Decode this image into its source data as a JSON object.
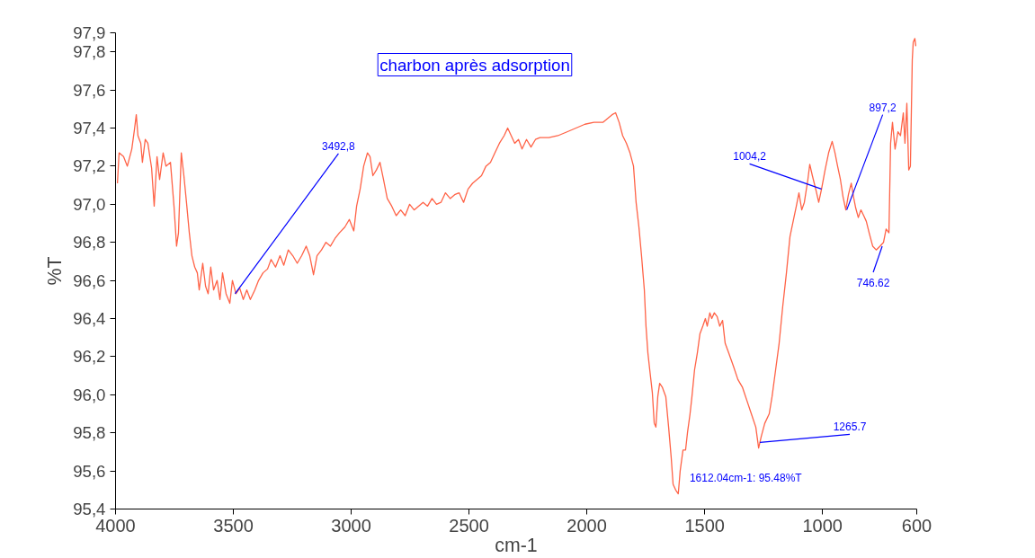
{
  "chart_data": {
    "type": "line",
    "xlabel": "cm-1",
    "ylabel": "%T",
    "xlim": [
      4000,
      600
    ],
    "xticks": [
      4000,
      3500,
      3000,
      2500,
      2000,
      1500,
      1000,
      600
    ],
    "ylim": [
      95.4,
      97.9
    ],
    "yticks": [
      {
        "value": 95.4,
        "label": "95,4"
      },
      {
        "value": 95.6,
        "label": "95,6"
      },
      {
        "value": 95.8,
        "label": "95,8"
      },
      {
        "value": 96.0,
        "label": "96,0"
      },
      {
        "value": 96.2,
        "label": "96,2"
      },
      {
        "value": 96.4,
        "label": "96,4"
      },
      {
        "value": 96.6,
        "label": "96,6"
      },
      {
        "value": 96.8,
        "label": "96,8"
      },
      {
        "value": 97.0,
        "label": "97,0"
      },
      {
        "value": 97.2,
        "label": "97,2"
      },
      {
        "value": 97.4,
        "label": "97,4"
      },
      {
        "value": 97.6,
        "label": "97,6"
      },
      {
        "value": 97.8,
        "label": "97,8"
      },
      {
        "value": 97.9,
        "label": "97,9"
      }
    ],
    "grid": false,
    "marker": "none",
    "line_style": "solid",
    "annotations": [
      "charbon après adsorption",
      {
        "text": "3492,8",
        "x": 3492.8,
        "y": 96.53
      },
      {
        "text": "1004,2",
        "x": 1004.2,
        "y": 97.08
      },
      {
        "text": "897,2",
        "x": 897.2,
        "y": 96.97
      },
      {
        "text": "746.62",
        "x": 746.62,
        "y": 96.78
      },
      {
        "text": "1265.7",
        "x": 1265.7,
        "y": 95.75
      },
      {
        "text": "1612.04cm-1: 95.48%T",
        "x": 1612.04,
        "y": 95.48
      }
    ],
    "series": [
      {
        "color": "#ff6347",
        "x": [
          3992,
          3985,
          3966,
          3950,
          3931,
          3920,
          3912,
          3905,
          3893,
          3886,
          3874,
          3863,
          3847,
          3836,
          3824,
          3813,
          3798,
          3786,
          3767,
          3752,
          3741,
          3733,
          3721,
          3710,
          3699,
          3687,
          3676,
          3664,
          3653,
          3645,
          3630,
          3618,
          3607,
          3596,
          3584,
          3569,
          3557,
          3546,
          3531,
          3515,
          3504,
          3489,
          3473,
          3458,
          3443,
          3428,
          3409,
          3393,
          3374,
          3355,
          3340,
          3321,
          3302,
          3286,
          3267,
          3248,
          3229,
          3210,
          3191,
          3176,
          3160,
          3145,
          3126,
          3107,
          3088,
          3069,
          3050,
          3027,
          3008,
          2989,
          2977,
          2962,
          2947,
          2931,
          2920,
          2908,
          2893,
          2878,
          2863,
          2847,
          2828,
          2809,
          2790,
          2771,
          2752,
          2733,
          2714,
          2695,
          2676,
          2657,
          2638,
          2619,
          2600,
          2580,
          2561,
          2542,
          2523,
          2504,
          2485,
          2466,
          2447,
          2428,
          2409,
          2390,
          2371,
          2351,
          2336,
          2321,
          2306,
          2290,
          2275,
          2256,
          2237,
          2218,
          2199,
          2161,
          2123,
          2084,
          2046,
          2008,
          1970,
          1932,
          1893,
          1878,
          1863,
          1848,
          1832,
          1817,
          1802,
          1791,
          1779,
          1768,
          1756,
          1749,
          1741,
          1733,
          1722,
          1714,
          1707,
          1699,
          1691,
          1680,
          1665,
          1653,
          1642,
          1634,
          1623,
          1612,
          1604,
          1592,
          1581,
          1573,
          1562,
          1554,
          1543,
          1531,
          1520,
          1508,
          1497,
          1489,
          1478,
          1470,
          1459,
          1447,
          1436,
          1424,
          1413,
          1398,
          1378,
          1359,
          1340,
          1321,
          1302,
          1283,
          1271,
          1260,
          1245,
          1226,
          1214,
          1199,
          1184,
          1169,
          1153,
          1138,
          1123,
          1111,
          1100,
          1088,
          1077,
          1062,
          1054,
          1043,
          1027,
          1016,
          1004,
          989,
          974,
          959,
          947,
          936,
          924,
          913,
          901,
          890,
          878,
          867,
          859,
          848,
          837,
          825,
          814,
          802,
          787,
          772,
          756,
          741,
          730,
          718,
          711,
          703,
          692,
          680,
          669,
          657,
          650,
          642,
          634,
          627,
          619,
          615,
          608,
          604
        ],
        "values": [
          97.11,
          97.27,
          97.25,
          97.2,
          97.29,
          97.39,
          97.47,
          97.36,
          97.32,
          97.22,
          97.34,
          97.32,
          97.19,
          96.99,
          97.25,
          97.13,
          97.27,
          97.2,
          97.22,
          96.99,
          96.78,
          96.85,
          97.27,
          97.15,
          97.01,
          96.85,
          96.73,
          96.67,
          96.64,
          96.55,
          96.69,
          96.57,
          96.53,
          96.67,
          96.55,
          96.6,
          96.5,
          96.64,
          96.53,
          96.48,
          96.6,
          96.53,
          96.56,
          96.5,
          96.55,
          96.5,
          96.55,
          96.6,
          96.64,
          96.66,
          96.71,
          96.67,
          96.73,
          96.68,
          96.76,
          96.73,
          96.69,
          96.73,
          96.78,
          96.73,
          96.63,
          96.73,
          96.76,
          96.8,
          96.78,
          96.82,
          96.85,
          96.88,
          96.92,
          96.86,
          96.99,
          97.08,
          97.2,
          97.27,
          97.25,
          97.15,
          97.18,
          97.22,
          97.13,
          97.03,
          96.99,
          96.94,
          96.97,
          96.94,
          97.0,
          96.97,
          96.99,
          97.01,
          96.99,
          97.03,
          97.0,
          97.01,
          97.06,
          97.03,
          97.05,
          97.06,
          97.01,
          97.08,
          97.11,
          97.13,
          97.15,
          97.2,
          97.22,
          97.27,
          97.32,
          97.36,
          97.4,
          97.36,
          97.32,
          97.34,
          97.29,
          97.34,
          97.3,
          97.34,
          97.35,
          97.35,
          97.36,
          97.38,
          97.4,
          97.42,
          97.43,
          97.43,
          97.47,
          97.48,
          97.43,
          97.36,
          97.32,
          97.27,
          97.2,
          97.01,
          96.88,
          96.73,
          96.55,
          96.36,
          96.22,
          96.13,
          96.01,
          95.85,
          95.83,
          95.99,
          96.06,
          96.04,
          95.99,
          95.83,
          95.67,
          95.53,
          95.5,
          95.48,
          95.6,
          95.71,
          95.71,
          95.8,
          95.9,
          95.99,
          96.13,
          96.22,
          96.32,
          96.36,
          96.4,
          96.36,
          96.43,
          96.4,
          96.43,
          96.41,
          96.36,
          96.39,
          96.27,
          96.22,
          96.15,
          96.08,
          96.04,
          95.97,
          95.9,
          95.83,
          95.72,
          95.78,
          95.85,
          95.9,
          95.99,
          96.13,
          96.27,
          96.46,
          96.64,
          96.83,
          96.92,
          96.99,
          97.06,
          96.97,
          97.01,
          97.13,
          97.21,
          97.15,
          97.07,
          97.01,
          97.08,
          97.18,
          97.27,
          97.33,
          97.27,
          97.2,
          97.13,
          97.04,
          96.97,
          97.05,
          97.11,
          97.03,
          96.98,
          96.93,
          96.97,
          96.94,
          96.91,
          96.85,
          96.78,
          96.76,
          96.78,
          96.8,
          96.87,
          96.85,
          97.32,
          97.43,
          97.29,
          97.38,
          97.36,
          97.48,
          97.32,
          97.53,
          97.18,
          97.2,
          97.76,
          97.85,
          97.87,
          97.83
        ]
      }
    ]
  }
}
